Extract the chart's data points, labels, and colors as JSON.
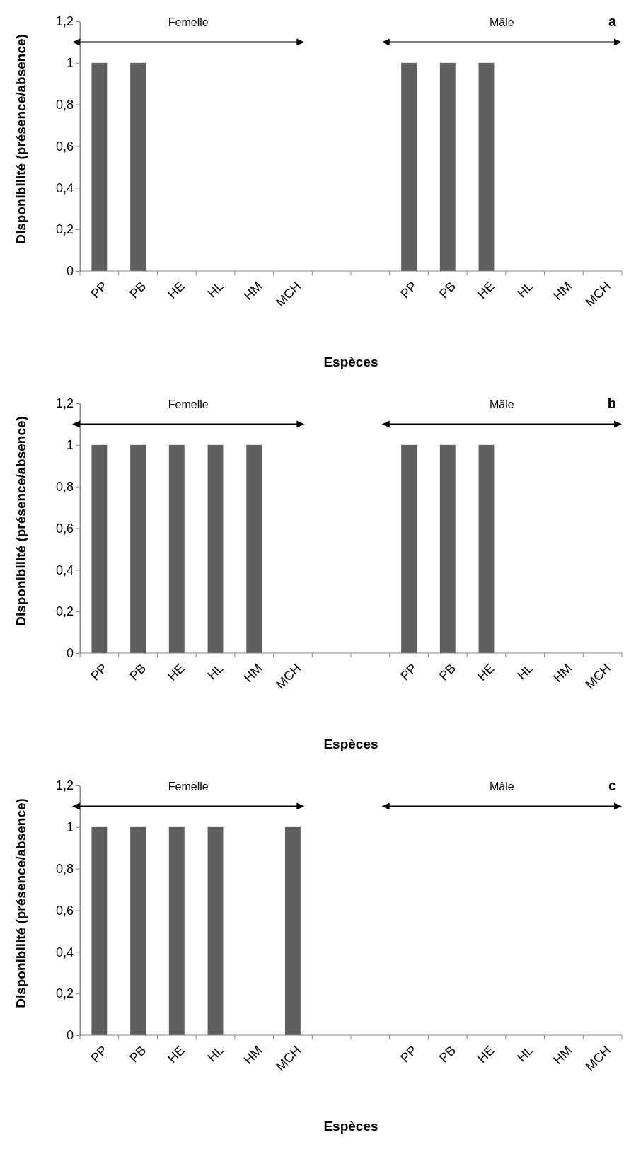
{
  "chart_data": [
    {
      "type": "bar",
      "categories": [
        "PP",
        "PB",
        "HE",
        "HL",
        "HM",
        "MCH",
        null,
        null,
        "PP",
        "PB",
        "HE",
        "HL",
        "HM",
        "MCH"
      ],
      "values": [
        1,
        1,
        0,
        0,
        0,
        0,
        null,
        null,
        1,
        1,
        1,
        0,
        0,
        0
      ],
      "color": "#5f5f5f",
      "ylim": [
        0,
        1.2
      ],
      "yticks": [
        {
          "value": 0,
          "label": "0"
        },
        {
          "value": 0.2,
          "label": "0,2"
        },
        {
          "value": 0.4,
          "label": "0,4"
        },
        {
          "value": 0.6,
          "label": "0,6"
        },
        {
          "value": 0.8,
          "label": "0,8"
        },
        {
          "value": 1,
          "label": "1"
        },
        {
          "value": 1.2,
          "label": "1,2"
        }
      ],
      "xlabel": "Espèces",
      "ylabel": "Disponibilité (présence/absence)",
      "annotations": [
        "Femelle",
        "Mâle",
        "a"
      ]
    },
    {
      "type": "bar",
      "categories": [
        "PP",
        "PB",
        "HE",
        "HL",
        "HM",
        "MCH",
        null,
        null,
        "PP",
        "PB",
        "HE",
        "HL",
        "HM",
        "MCH"
      ],
      "values": [
        1,
        1,
        1,
        1,
        1,
        0,
        null,
        null,
        1,
        1,
        1,
        0,
        0,
        0
      ],
      "color": "#5f5f5f",
      "ylim": [
        0,
        1.2
      ],
      "yticks": [
        {
          "value": 0,
          "label": "0"
        },
        {
          "value": 0.2,
          "label": "0,2"
        },
        {
          "value": 0.4,
          "label": "0,4"
        },
        {
          "value": 0.6,
          "label": "0,6"
        },
        {
          "value": 0.8,
          "label": "0,8"
        },
        {
          "value": 1,
          "label": "1"
        },
        {
          "value": 1.2,
          "label": "1,2"
        }
      ],
      "xlabel": "Espèces",
      "ylabel": "Disponibilité (présence/absence)",
      "annotations": [
        "Femelle",
        "Mâle",
        "b"
      ]
    },
    {
      "type": "bar",
      "categories": [
        "PP",
        "PB",
        "HE",
        "HL",
        "HM",
        "MCH",
        null,
        null,
        "PP",
        "PB",
        "HE",
        "HL",
        "HM",
        "MCH"
      ],
      "values": [
        1,
        1,
        1,
        1,
        0,
        1,
        null,
        null,
        0,
        0,
        0,
        0,
        0,
        0
      ],
      "color": "#5f5f5f",
      "ylim": [
        0,
        1.2
      ],
      "yticks": [
        {
          "value": 0,
          "label": "0"
        },
        {
          "value": 0.2,
          "label": "0,2"
        },
        {
          "value": 0.4,
          "label": "0,4"
        },
        {
          "value": 0.6,
          "label": "0,6"
        },
        {
          "value": 0.8,
          "label": "0,8"
        },
        {
          "value": 1,
          "label": "1"
        },
        {
          "value": 1.2,
          "label": "1,2"
        }
      ],
      "xlabel": "Espèces",
      "ylabel": "Disponibilité (présence/absence)",
      "annotations": [
        "Femelle",
        "Mâle",
        "c"
      ]
    }
  ]
}
